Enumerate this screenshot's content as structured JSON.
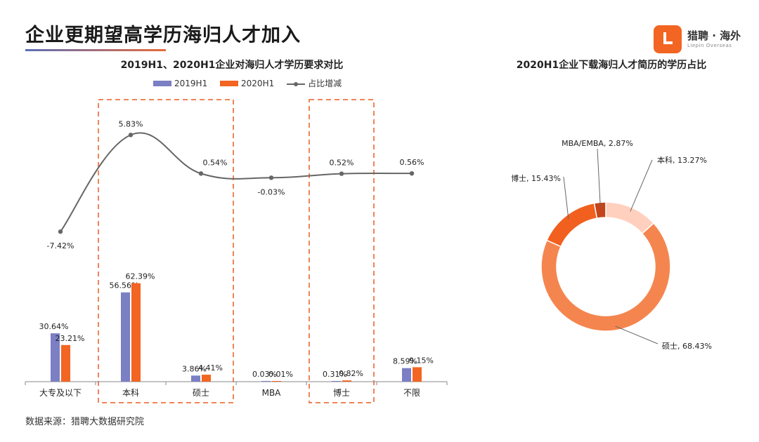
{
  "page": {
    "title": "企业更期望高学历海归人才加入",
    "source": "数据来源：猎聘大数据研究院"
  },
  "logo": {
    "name": "猎聘 · 海外",
    "subtitle": "Liepin Overseas"
  },
  "colors": {
    "series_2019": "#7b7fc4",
    "series_2020": "#f26522",
    "line": "#666666",
    "highlight_box": "#f0845a",
    "pie_colors": [
      "#ffd0bd",
      "#f5854e",
      "#f2601f",
      "#c4451a"
    ]
  },
  "chart_data": [
    {
      "type": "bar",
      "title": "2019H1、2020H1企业对海归人才学历要求对比",
      "categories": [
        "大专及以下",
        "本科",
        "硕士",
        "MBA",
        "博士",
        "不限"
      ],
      "series": [
        {
          "name": "2019H1",
          "values": [
            30.64,
            56.56,
            3.86,
            0.03,
            0.31,
            8.59
          ],
          "labels": [
            "30.64%",
            "56.56%",
            "3.86%",
            "0.03%",
            "0.31%",
            "8.59%"
          ]
        },
        {
          "name": "2020H1",
          "values": [
            23.21,
            62.39,
            4.41,
            0.01,
            0.82,
            9.15
          ],
          "labels": [
            "23.21%",
            "62.39%",
            "4.41%",
            "0.01%",
            "0.82%",
            "9.15%"
          ]
        }
      ],
      "line_series": {
        "name": "占比增减",
        "values": [
          -7.42,
          5.83,
          0.54,
          -0.03,
          0.52,
          0.56
        ],
        "labels": [
          "-7.42%",
          "5.83%",
          "0.54%",
          "-0.03%",
          "0.52%",
          "0.56%"
        ]
      },
      "highlighted_categories": [
        "本科",
        "硕士",
        "博士"
      ],
      "legend_position": "top"
    },
    {
      "type": "pie",
      "title": "2020H1企业下载海归人才简历的学历占比",
      "slices": [
        {
          "label": "本科, 13.27%",
          "name": "本科",
          "value": 13.27
        },
        {
          "label": "硕士, 68.43%",
          "name": "硕士",
          "value": 68.43
        },
        {
          "label": "博士, 15.43%",
          "name": "博士",
          "value": 15.43
        },
        {
          "label": "MBA/EMBA, 2.87%",
          "name": "MBA/EMBA",
          "value": 2.87
        }
      ]
    }
  ]
}
